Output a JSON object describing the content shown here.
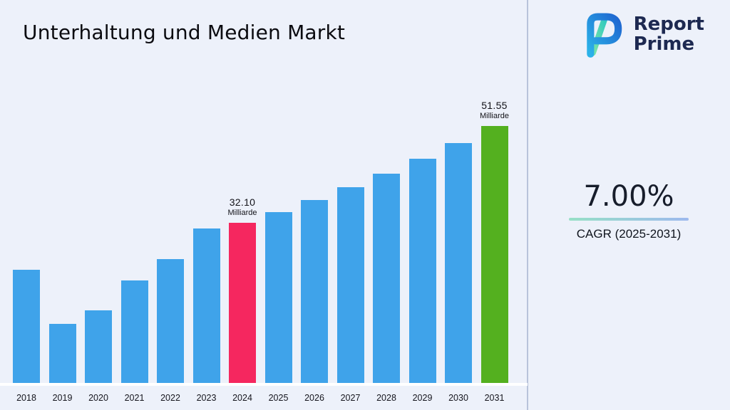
{
  "logo": {
    "line1": "Report",
    "line2": "Prime"
  },
  "stats": {
    "cagr_value": "7.00%",
    "cagr_label": "CAGR (2025-2031)"
  },
  "chart_data": {
    "type": "bar",
    "title": "Unterhaltung und Medien Markt",
    "unit": "Milliarde",
    "categories": [
      "2018",
      "2019",
      "2020",
      "2021",
      "2022",
      "2023",
      "2024",
      "2025",
      "2026",
      "2027",
      "2028",
      "2029",
      "2030",
      "2031"
    ],
    "values": [
      22.7,
      11.8,
      14.5,
      20.5,
      24.8,
      31.0,
      32.1,
      34.35,
      36.75,
      39.32,
      42.07,
      45.02,
      48.17,
      51.55
    ],
    "ylim": [
      0,
      55
    ],
    "grid": false,
    "legend": "none",
    "annotations": [
      {
        "category": "2024",
        "value": "32.10",
        "unit": "Milliarde"
      },
      {
        "category": "2031",
        "value": "51.55",
        "unit": "Milliarde"
      }
    ],
    "colors": {
      "default": "#3fa3ea",
      "highlights": {
        "2024": "#f5275f",
        "2031": "#54b01f"
      }
    }
  },
  "theme": {
    "background": "#edf1fa",
    "divider": "#b9c3da",
    "brand_navy": "#1d2951",
    "underline_gradient": [
      "#97e0c6",
      "#9db9ee"
    ]
  }
}
